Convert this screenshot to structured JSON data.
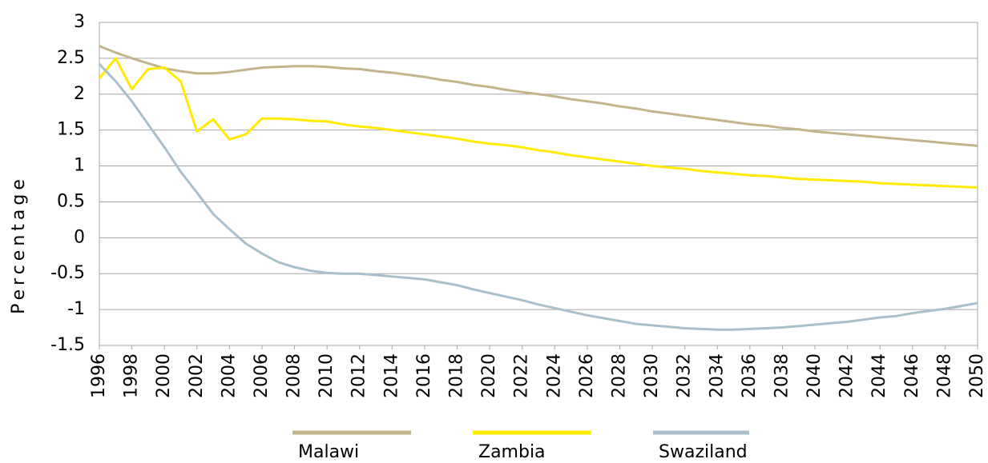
{
  "chart_data": {
    "type": "line",
    "y_label": "Percentage",
    "x": [
      1996,
      1997,
      1998,
      1999,
      2000,
      2001,
      2002,
      2003,
      2004,
      2005,
      2006,
      2007,
      2008,
      2009,
      2010,
      2011,
      2012,
      2013,
      2014,
      2015,
      2016,
      2017,
      2018,
      2019,
      2020,
      2021,
      2022,
      2023,
      2024,
      2025,
      2026,
      2027,
      2028,
      2029,
      2030,
      2031,
      2032,
      2033,
      2034,
      2035,
      2036,
      2037,
      2038,
      2039,
      2040,
      2041,
      2042,
      2043,
      2044,
      2045,
      2046,
      2047,
      2048,
      2049,
      2050
    ],
    "series": [
      {
        "name": "Malawi",
        "color": "#c4b48c",
        "values": [
          2.67,
          2.58,
          2.5,
          2.43,
          2.36,
          2.32,
          2.29,
          2.29,
          2.31,
          2.34,
          2.37,
          2.38,
          2.39,
          2.39,
          2.38,
          2.36,
          2.35,
          2.32,
          2.3,
          2.27,
          2.24,
          2.2,
          2.17,
          2.13,
          2.1,
          2.06,
          2.03,
          2.0,
          1.97,
          1.93,
          1.9,
          1.87,
          1.83,
          1.8,
          1.76,
          1.73,
          1.7,
          1.67,
          1.64,
          1.61,
          1.58,
          1.56,
          1.53,
          1.51,
          1.48,
          1.46,
          1.44,
          1.42,
          1.4,
          1.38,
          1.36,
          1.34,
          1.32,
          1.3,
          1.28
        ]
      },
      {
        "name": "Zambia",
        "color": "#ffea00",
        "values": [
          2.22,
          2.5,
          2.07,
          2.35,
          2.37,
          2.18,
          1.48,
          1.65,
          1.37,
          1.44,
          1.66,
          1.66,
          1.65,
          1.63,
          1.62,
          1.58,
          1.55,
          1.53,
          1.5,
          1.47,
          1.44,
          1.41,
          1.38,
          1.34,
          1.31,
          1.29,
          1.26,
          1.22,
          1.19,
          1.15,
          1.12,
          1.09,
          1.06,
          1.03,
          1.0,
          0.98,
          0.96,
          0.93,
          0.91,
          0.89,
          0.87,
          0.86,
          0.84,
          0.82,
          0.81,
          0.8,
          0.79,
          0.78,
          0.76,
          0.75,
          0.74,
          0.73,
          0.72,
          0.71,
          0.7
        ]
      },
      {
        "name": "Swaziland",
        "color": "#a9bfcc",
        "values": [
          2.42,
          2.18,
          1.9,
          1.58,
          1.26,
          0.92,
          0.63,
          0.33,
          0.12,
          -0.08,
          -0.22,
          -0.34,
          -0.41,
          -0.46,
          -0.49,
          -0.5,
          -0.5,
          -0.52,
          -0.54,
          -0.56,
          -0.58,
          -0.62,
          -0.66,
          -0.72,
          -0.77,
          -0.82,
          -0.87,
          -0.93,
          -0.98,
          -1.03,
          -1.08,
          -1.12,
          -1.16,
          -1.2,
          -1.22,
          -1.24,
          -1.26,
          -1.27,
          -1.28,
          -1.28,
          -1.27,
          -1.26,
          -1.25,
          -1.23,
          -1.21,
          -1.19,
          -1.17,
          -1.14,
          -1.11,
          -1.09,
          -1.05,
          -1.02,
          -0.99,
          -0.95,
          -0.91
        ]
      }
    ],
    "xlim": [
      1996,
      2050
    ],
    "xticks": [
      1996,
      1998,
      2000,
      2002,
      2004,
      2006,
      2008,
      2010,
      2012,
      2014,
      2016,
      2018,
      2020,
      2022,
      2024,
      2026,
      2028,
      2030,
      2032,
      2034,
      2036,
      2038,
      2040,
      2042,
      2044,
      2046,
      2048,
      2050
    ],
    "ylim": [
      -1.5,
      3
    ],
    "yticks": [
      3,
      2.5,
      2,
      1.5,
      1,
      0.5,
      0,
      -0.5,
      -1,
      -1.5
    ],
    "grid": true,
    "legend": "bottom"
  }
}
